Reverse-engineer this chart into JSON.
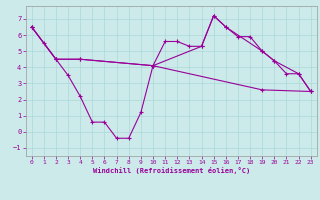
{
  "xlabel": "Windchill (Refroidissement éolien,°C)",
  "bg_color": "#cceaea",
  "line_color": "#990099",
  "xlim": [
    -0.5,
    23.5
  ],
  "ylim": [
    -1.5,
    7.8
  ],
  "yticks": [
    -1,
    0,
    1,
    2,
    3,
    4,
    5,
    6,
    7
  ],
  "xticks": [
    0,
    1,
    2,
    3,
    4,
    5,
    6,
    7,
    8,
    9,
    10,
    11,
    12,
    13,
    14,
    15,
    16,
    17,
    18,
    19,
    20,
    21,
    22,
    23
  ],
  "line1_x": [
    0,
    1,
    2,
    3,
    4,
    5,
    6,
    7,
    8,
    9,
    10,
    11,
    12,
    13,
    14,
    15,
    16,
    17,
    18,
    19,
    20,
    21,
    22,
    23
  ],
  "line1_y": [
    6.5,
    5.5,
    4.5,
    3.5,
    2.2,
    0.6,
    0.6,
    -0.4,
    -0.4,
    1.2,
    4.1,
    5.6,
    5.6,
    5.3,
    5.3,
    7.2,
    6.5,
    5.9,
    5.9,
    5.0,
    4.4,
    3.6,
    3.6,
    2.5
  ],
  "line2_x": [
    0,
    2,
    4,
    10,
    14,
    15,
    16,
    19,
    20,
    22,
    23
  ],
  "line2_y": [
    6.5,
    4.5,
    4.5,
    4.1,
    5.3,
    7.2,
    6.5,
    5.0,
    4.4,
    3.6,
    2.5
  ],
  "line3_x": [
    0,
    2,
    4,
    10,
    19,
    23
  ],
  "line3_y": [
    6.5,
    4.5,
    4.5,
    4.1,
    2.6,
    2.5
  ],
  "grid_color": "#aad8d8"
}
